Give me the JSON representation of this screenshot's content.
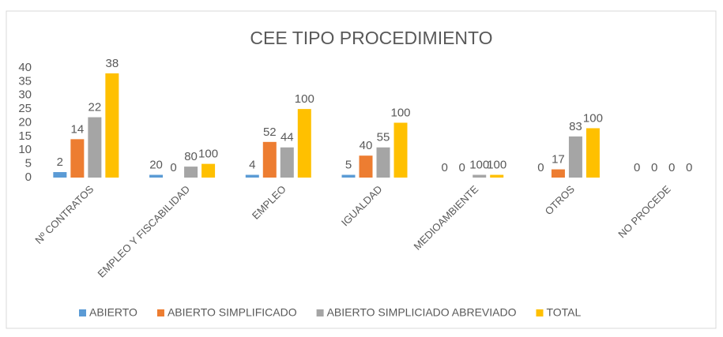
{
  "chart_data": {
    "type": "bar",
    "title": "CEE TIPO PROCEDIMIENTO",
    "categories": [
      "Nº CONTRATOS",
      "EMPLEO Y FISCABILIDAD",
      "EMPLEO",
      "IGUALDAD",
      "MEDIOAMBIENTE",
      "OTROS",
      "NO PROCEDE"
    ],
    "series": [
      {
        "name": "ABIERTO",
        "color": "#5b9bd5",
        "values": [
          2,
          1,
          1,
          1,
          0,
          0,
          0
        ],
        "point_labels": [
          2,
          20,
          4,
          5,
          0,
          0,
          0
        ]
      },
      {
        "name": "ABIERTO SIMPLIFICADO",
        "color": "#ed7d31",
        "values": [
          14,
          0,
          13,
          8,
          0,
          3,
          0
        ],
        "point_labels": [
          14,
          0,
          52,
          40,
          0,
          17,
          0
        ]
      },
      {
        "name": "ABIERTO SIMPLICIADO ABREVIADO",
        "color": "#a5a5a5",
        "values": [
          22,
          4,
          11,
          11,
          1,
          15,
          0
        ],
        "point_labels": [
          22,
          80,
          44,
          55,
          100,
          83,
          0
        ]
      },
      {
        "name": "TOTAL",
        "color": "#ffc000",
        "values": [
          38,
          5,
          25,
          20,
          1,
          18,
          0
        ],
        "point_labels": [
          38,
          100,
          100,
          100,
          100,
          100,
          0
        ]
      }
    ],
    "ylim": [
      0,
      40
    ],
    "yticks": [
      0,
      5,
      10,
      15,
      20,
      25,
      30,
      35,
      40
    ],
    "grid": false,
    "legend": "bottom"
  }
}
